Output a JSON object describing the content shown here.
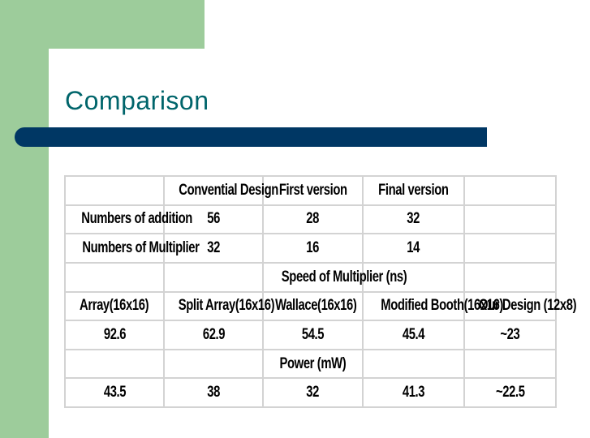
{
  "slide": {
    "title": "Comparison",
    "colors": {
      "accent_green": "#9dcc9b",
      "title_bar": "#003764",
      "title_text": "#00656b"
    }
  },
  "table": {
    "rows": [
      [
        "",
        "Convential Design",
        "First version",
        "Final version",
        ""
      ],
      [
        "Numbers of addition",
        "56",
        "28",
        "32",
        ""
      ],
      [
        "Numbers of Multiplier",
        "32",
        "16",
        "14",
        ""
      ],
      [
        "",
        "",
        "Speed of Multiplier (ns)",
        "",
        ""
      ],
      [
        "Array(16x16)",
        "Split Array(16x16)",
        "Wallace(16x16)",
        "Modified Booth(16x16)",
        "Our Design (12x8)"
      ],
      [
        "92.6",
        "62.9",
        "54.5",
        "45.4",
        "~23"
      ],
      [
        "",
        "",
        "Power (mW)",
        "",
        ""
      ],
      [
        "43.5",
        "38",
        "32",
        "41.3",
        "~22.5"
      ]
    ]
  }
}
